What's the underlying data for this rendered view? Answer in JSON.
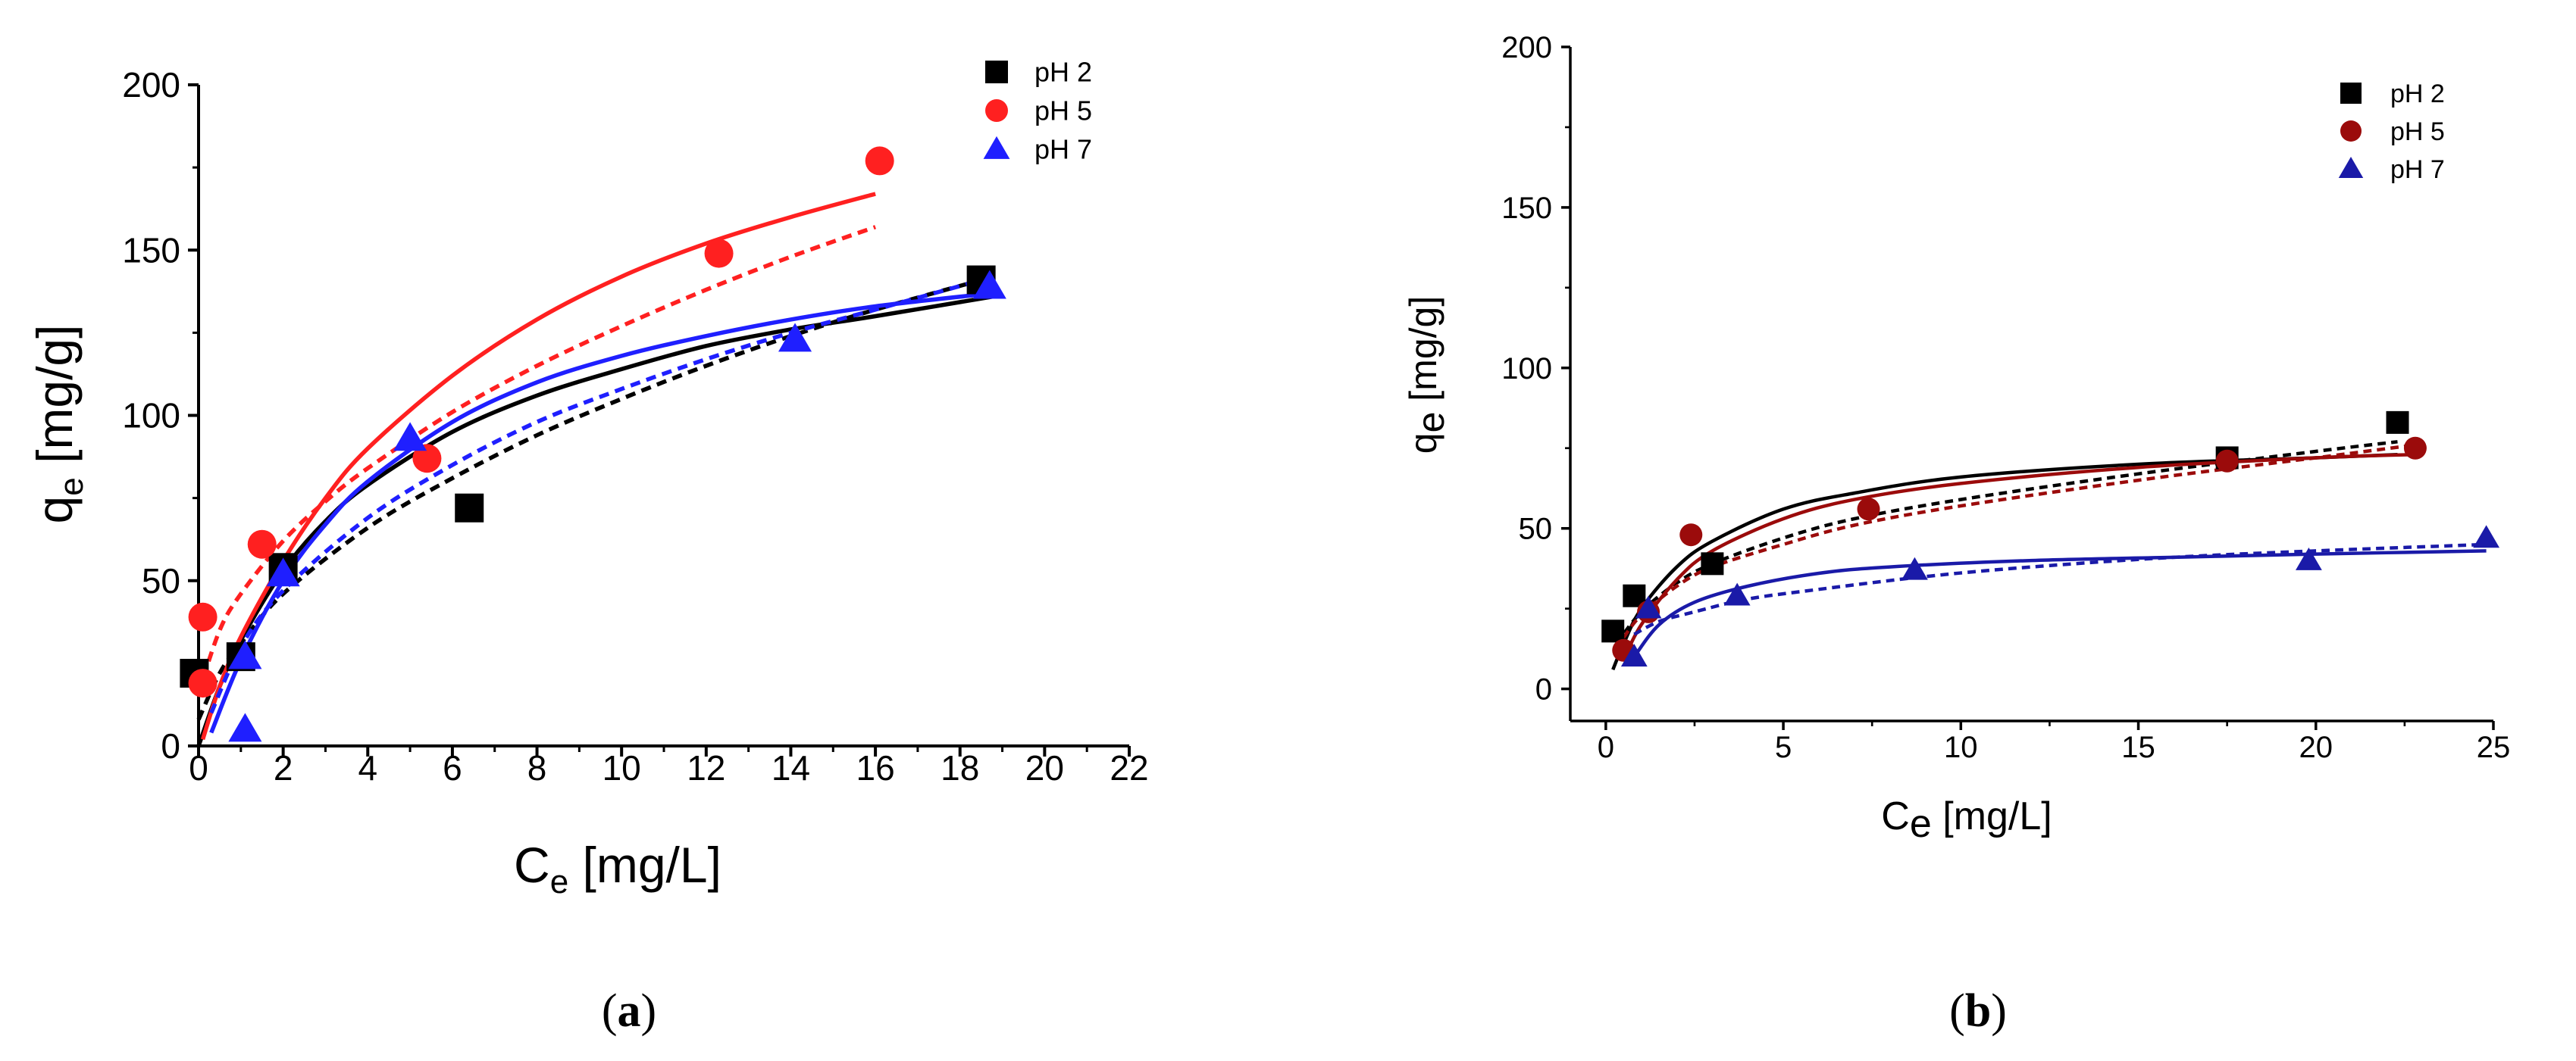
{
  "colors": {
    "black": "#000000",
    "red_a": "#ff2020",
    "blue_a": "#1f1fff",
    "darkred_b": "#9b0b0b",
    "darkblue_b": "#1a1aa8"
  },
  "chart_data": [
    {
      "panel": "a",
      "type": "scatter",
      "panel_label_open": "(",
      "panel_label_letter": "a",
      "panel_label_close": ")",
      "ylabel_main": "q",
      "ylabel_sub": "e",
      "ylabel_rest": " [mg/g]",
      "xlabel_main": "C",
      "xlabel_sub": "e",
      "xlabel_rest": " [mg/L]",
      "xlim": [
        0,
        22
      ],
      "ylim": [
        0,
        200
      ],
      "xticks": [
        "0",
        "2",
        "4",
        "6",
        "8",
        "10",
        "12",
        "14",
        "16",
        "18",
        "20",
        "22"
      ],
      "yticks": [
        "0",
        "50",
        "100",
        "150",
        "200"
      ],
      "legend_position": "top-right",
      "series": [
        {
          "name": "pH 2",
          "color": "#000000",
          "marker": "square",
          "points": [
            [
              -0.1,
              22
            ],
            [
              1.0,
              27
            ],
            [
              2.0,
              54
            ],
            [
              6.4,
              72
            ],
            [
              18.5,
              141
            ]
          ],
          "fit_solid": [
            [
              0,
              0
            ],
            [
              0.5,
              18
            ],
            [
              1,
              32
            ],
            [
              2,
              53
            ],
            [
              3,
              68
            ],
            [
              4,
              79
            ],
            [
              6,
              95
            ],
            [
              8,
              106
            ],
            [
              10,
              114
            ],
            [
              12,
              121
            ],
            [
              14,
              126
            ],
            [
              16,
              130
            ],
            [
              18.8,
              136
            ]
          ],
          "fit_dashed": [
            [
              0,
              8
            ],
            [
              0.5,
              22
            ],
            [
              1,
              31
            ],
            [
              2,
              46
            ],
            [
              4,
              66
            ],
            [
              6,
              81
            ],
            [
              8,
              94
            ],
            [
              10,
              105
            ],
            [
              12,
              115
            ],
            [
              14,
              124
            ],
            [
              16,
              132
            ],
            [
              18.8,
              142
            ]
          ]
        },
        {
          "name": "pH 5",
          "color": "#ff2020",
          "marker": "circle",
          "points": [
            [
              0.1,
              39
            ],
            [
              0.1,
              19
            ],
            [
              1.5,
              61
            ],
            [
              5.4,
              87
            ],
            [
              12.3,
              149
            ],
            [
              16.1,
              177
            ]
          ],
          "fit_solid": [
            [
              0.1,
              2
            ],
            [
              0.5,
              18
            ],
            [
              1,
              33
            ],
            [
              2,
              56
            ],
            [
              3,
              75
            ],
            [
              4,
              90
            ],
            [
              6,
              112
            ],
            [
              8,
              129
            ],
            [
              10,
              142
            ],
            [
              12,
              152
            ],
            [
              14,
              160
            ],
            [
              16,
              167
            ]
          ],
          "fit_dashed": [
            [
              0,
              16
            ],
            [
              0.5,
              35
            ],
            [
              1,
              46
            ],
            [
              2,
              62
            ],
            [
              3,
              74
            ],
            [
              4,
              84
            ],
            [
              6,
              101
            ],
            [
              8,
              115
            ],
            [
              10,
              127
            ],
            [
              12,
              138
            ],
            [
              14,
              148
            ],
            [
              16,
              157
            ]
          ]
        },
        {
          "name": "pH 7",
          "color": "#1f1fff",
          "marker": "triangle",
          "points": [
            [
              1.1,
              27
            ],
            [
              1.1,
              5
            ],
            [
              2.0,
              52
            ],
            [
              5.0,
              93
            ],
            [
              14.1,
              123
            ],
            [
              18.7,
              139
            ]
          ],
          "fit_solid": [
            [
              0.3,
              4
            ],
            [
              1,
              26
            ],
            [
              2,
              50
            ],
            [
              3,
              67
            ],
            [
              4,
              80
            ],
            [
              6,
              98
            ],
            [
              8,
              110
            ],
            [
              10,
              118
            ],
            [
              12,
              124
            ],
            [
              14,
              129
            ],
            [
              16,
              133
            ],
            [
              18.8,
              137
            ]
          ],
          "fit_dashed": [
            [
              0.3,
              10
            ],
            [
              1,
              30
            ],
            [
              2,
              47
            ],
            [
              4,
              69
            ],
            [
              6,
              85
            ],
            [
              8,
              98
            ],
            [
              10,
              108
            ],
            [
              12,
              117
            ],
            [
              14,
              125
            ],
            [
              16,
              132
            ],
            [
              18.8,
              142
            ]
          ]
        }
      ]
    },
    {
      "panel": "b",
      "type": "scatter",
      "panel_label_open": "(",
      "panel_label_letter": "b",
      "panel_label_close": ")",
      "ylabel_main": "q",
      "ylabel_sub": "e",
      "ylabel_rest": " [mg/g]",
      "xlabel_main": "C",
      "xlabel_sub": "e",
      "xlabel_rest": " [mg/L]",
      "xlim": [
        -1,
        25
      ],
      "ylim": [
        -10,
        200
      ],
      "xticks": [
        "0",
        "5",
        "10",
        "15",
        "20",
        "25"
      ],
      "yticks": [
        "0",
        "50",
        "100",
        "150",
        "200"
      ],
      "legend_position": "top-right",
      "series": [
        {
          "name": "pH 2",
          "color": "#000000",
          "marker": "square",
          "points": [
            [
              0.2,
              18
            ],
            [
              0.8,
              29
            ],
            [
              3.0,
              39
            ],
            [
              17.5,
              72
            ],
            [
              22.3,
              83
            ]
          ],
          "fit_solid": [
            [
              0.2,
              6
            ],
            [
              0.5,
              14
            ],
            [
              1,
              25
            ],
            [
              2,
              38
            ],
            [
              3,
              46
            ],
            [
              5,
              56
            ],
            [
              7,
              61
            ],
            [
              10,
              66
            ],
            [
              15,
              70
            ],
            [
              20,
              72
            ],
            [
              22.3,
              73
            ]
          ],
          "fit_dashed": [
            [
              0.3,
              14
            ],
            [
              1,
              24
            ],
            [
              2,
              33
            ],
            [
              3,
              39
            ],
            [
              5,
              47
            ],
            [
              7,
              53
            ],
            [
              10,
              59
            ],
            [
              15,
              67
            ],
            [
              20,
              74
            ],
            [
              22.3,
              77
            ]
          ]
        },
        {
          "name": "pH 5",
          "color": "#9b0b0b",
          "marker": "circle",
          "points": [
            [
              0.5,
              12
            ],
            [
              1.2,
              24
            ],
            [
              2.4,
              48
            ],
            [
              7.4,
              56
            ],
            [
              17.5,
              71
            ],
            [
              22.8,
              75
            ]
          ],
          "fit_solid": [
            [
              0.5,
              9
            ],
            [
              1,
              20
            ],
            [
              2,
              34
            ],
            [
              3,
              43
            ],
            [
              5,
              53
            ],
            [
              7,
              59
            ],
            [
              10,
              64
            ],
            [
              15,
              69
            ],
            [
              20,
              72
            ],
            [
              22.8,
              73
            ]
          ],
          "fit_dashed": [
            [
              0.5,
              16
            ],
            [
              1,
              23
            ],
            [
              2,
              32
            ],
            [
              3,
              38
            ],
            [
              5,
              45
            ],
            [
              7,
              51
            ],
            [
              10,
              57
            ],
            [
              15,
              65
            ],
            [
              20,
              72
            ],
            [
              22.8,
              76
            ]
          ]
        },
        {
          "name": "pH 7",
          "color": "#1a1aa8",
          "marker": "triangle",
          "points": [
            [
              0.8,
              10
            ],
            [
              1.2,
              25
            ],
            [
              3.7,
              29
            ],
            [
              8.7,
              37
            ],
            [
              19.8,
              40
            ],
            [
              24.8,
              47
            ]
          ],
          "fit_solid": [
            [
              0.8,
              10
            ],
            [
              1.5,
              20
            ],
            [
              2.5,
              27
            ],
            [
              4,
              32
            ],
            [
              6,
              36
            ],
            [
              8,
              38
            ],
            [
              12,
              40
            ],
            [
              16,
              41
            ],
            [
              20,
              42
            ],
            [
              24.8,
              43
            ]
          ],
          "fit_dashed": [
            [
              0.8,
              17
            ],
            [
              1.5,
              21
            ],
            [
              2.5,
              24
            ],
            [
              4,
              28
            ],
            [
              6,
              31
            ],
            [
              9,
              35
            ],
            [
              12,
              38
            ],
            [
              16,
              41
            ],
            [
              20,
              43
            ],
            [
              24.8,
              45
            ]
          ]
        }
      ]
    }
  ]
}
